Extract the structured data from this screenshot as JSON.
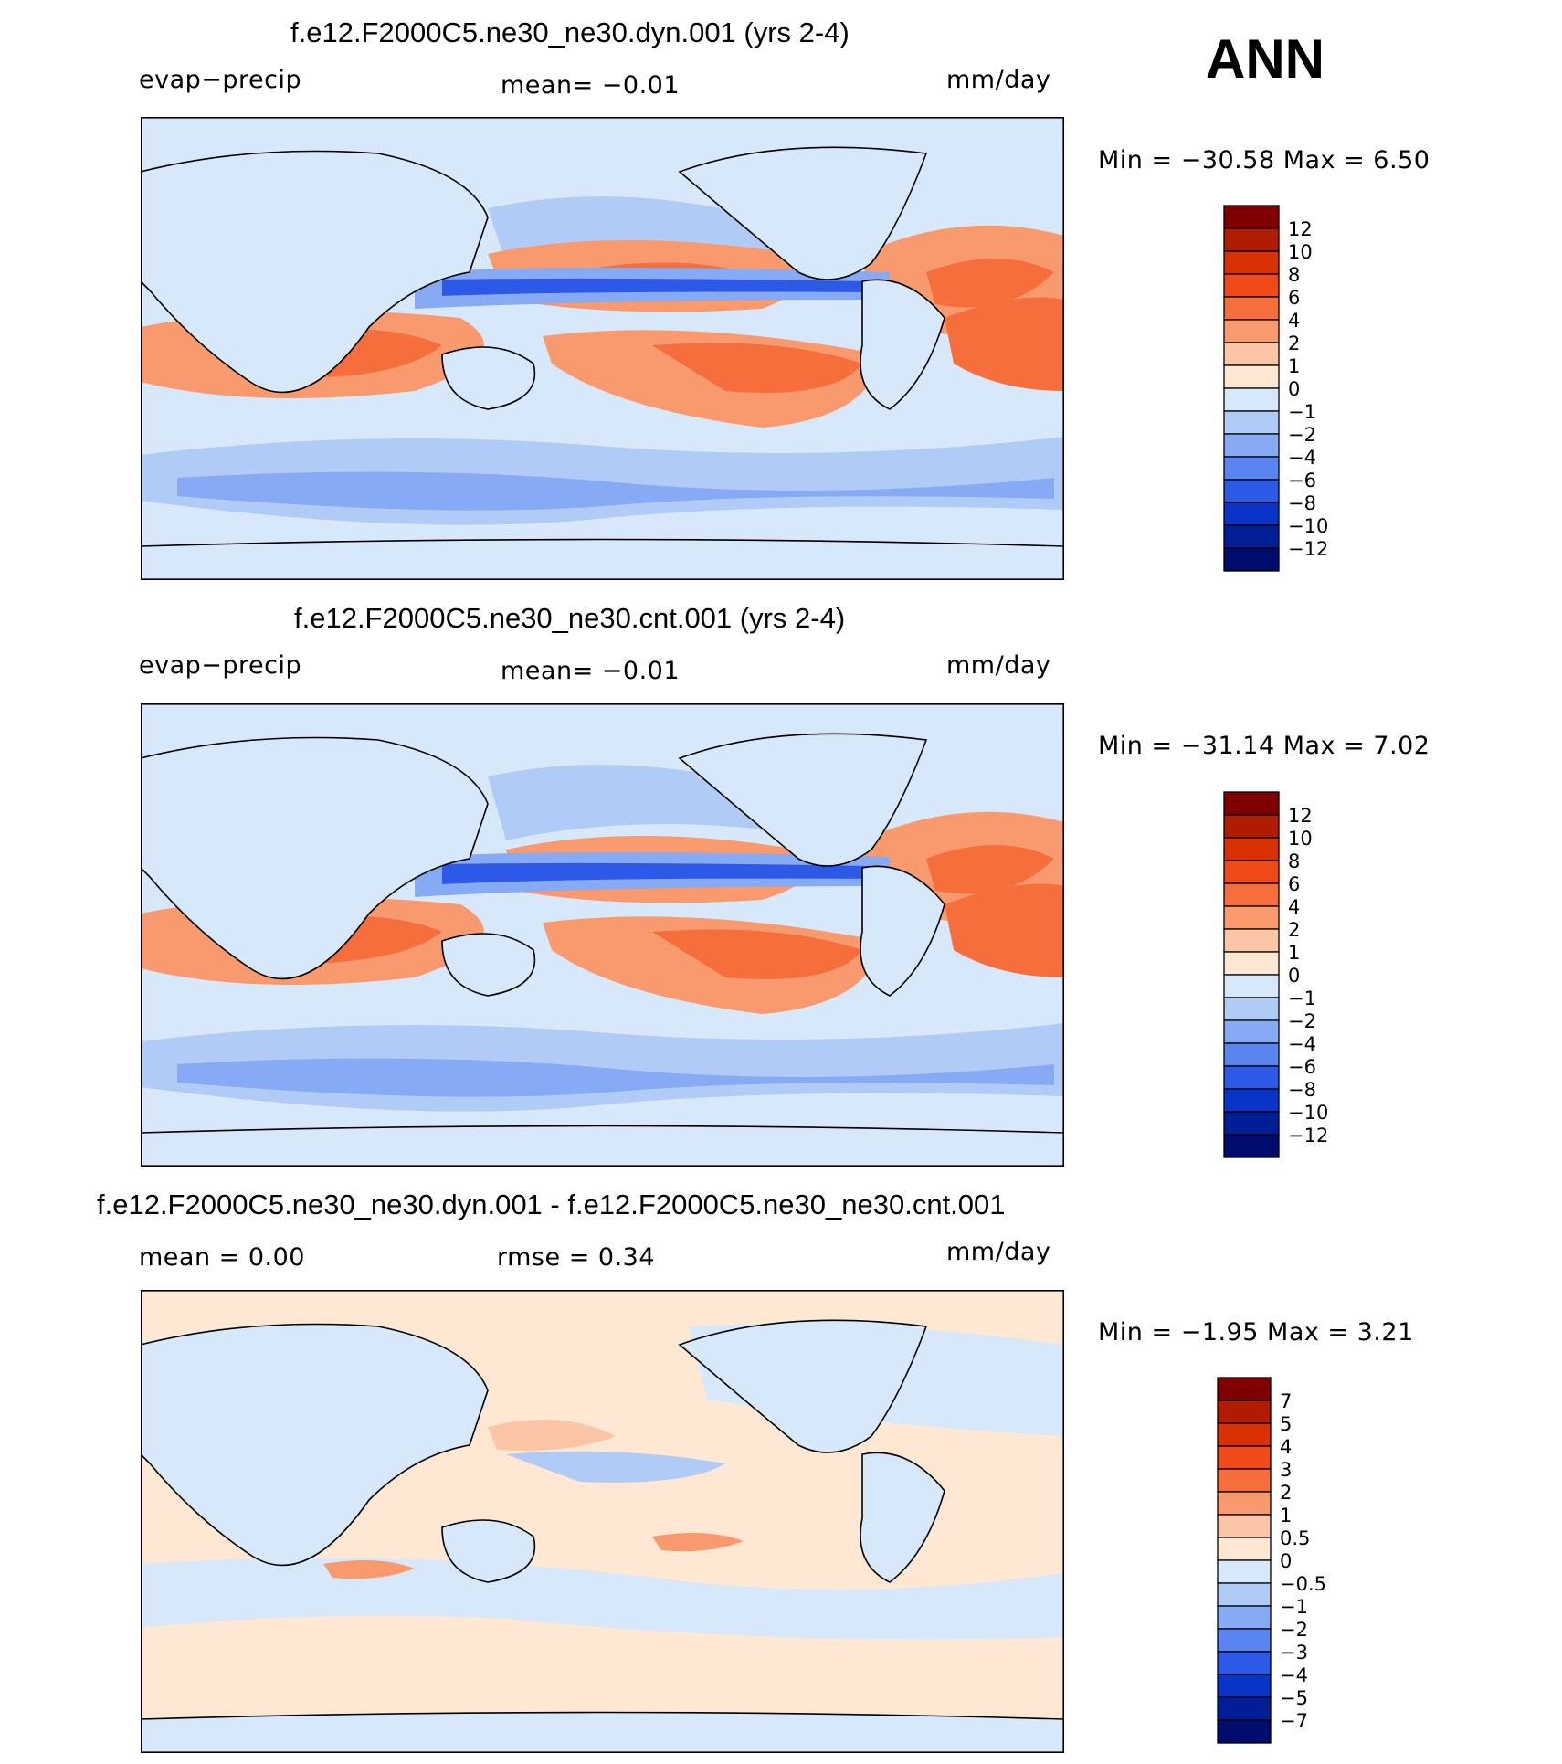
{
  "season": "ANN",
  "chart_data": [
    {
      "type": "heatmap",
      "title": "f.e12.F2000C5.ne30_ne30.dyn.001 (yrs 2-4)",
      "variable": "evap−precip",
      "stat_left": "",
      "stat_center": "mean=   −0.01",
      "units": "mm/day",
      "min_max": "Min  =  −30.58  Max  =     6.50",
      "colorbar": {
        "labels": [
          "12",
          "10",
          "8",
          "6",
          "4",
          "2",
          "1",
          "0",
          "−1",
          "−2",
          "−4",
          "−6",
          "−8",
          "−10",
          "−12"
        ],
        "colors": [
          "#7f0000",
          "#b01c00",
          "#d93200",
          "#f04a18",
          "#f56e3c",
          "#f89a6e",
          "#fcc6a6",
          "#fee8d4",
          "#d6e8fa",
          "#b0ccf6",
          "#86aaf4",
          "#5a84f0",
          "#2c5ae6",
          "#0a34c8",
          "#001e96",
          "#000c6e"
        ]
      }
    },
    {
      "type": "heatmap",
      "title": "f.e12.F2000C5.ne30_ne30.cnt.001 (yrs 2-4)",
      "variable": "evap−precip",
      "stat_left": "",
      "stat_center": "mean=   −0.01",
      "units": "mm/day",
      "min_max": "Min  =  −31.14  Max  =     7.02",
      "colorbar": {
        "labels": [
          "12",
          "10",
          "8",
          "6",
          "4",
          "2",
          "1",
          "0",
          "−1",
          "−2",
          "−4",
          "−6",
          "−8",
          "−10",
          "−12"
        ],
        "colors": [
          "#7f0000",
          "#b01c00",
          "#d93200",
          "#f04a18",
          "#f56e3c",
          "#f89a6e",
          "#fcc6a6",
          "#fee8d4",
          "#d6e8fa",
          "#b0ccf6",
          "#86aaf4",
          "#5a84f0",
          "#2c5ae6",
          "#0a34c8",
          "#001e96",
          "#000c6e"
        ]
      }
    },
    {
      "type": "heatmap",
      "title": "f.e12.F2000C5.ne30_ne30.dyn.001 - f.e12.F2000C5.ne30_ne30.cnt.001",
      "variable": "",
      "stat_left": "mean  =     0.00",
      "stat_center": "rmse  =     0.34",
      "units": "mm/day",
      "min_max": "Min  =    −1.95  Max  =     3.21",
      "colorbar": {
        "labels": [
          "7",
          "5",
          "4",
          "3",
          "2",
          "1",
          "0.5",
          "0",
          "−0.5",
          "−1",
          "−2",
          "−3",
          "−4",
          "−5",
          "−7"
        ],
        "colors": [
          "#7f0000",
          "#b01c00",
          "#d93200",
          "#f04a18",
          "#f56e3c",
          "#f89a6e",
          "#fcc6a6",
          "#fee8d4",
          "#d6e8fa",
          "#b0ccf6",
          "#86aaf4",
          "#5a84f0",
          "#2c5ae6",
          "#0a34c8",
          "#001e96",
          "#000c6e"
        ]
      }
    }
  ]
}
